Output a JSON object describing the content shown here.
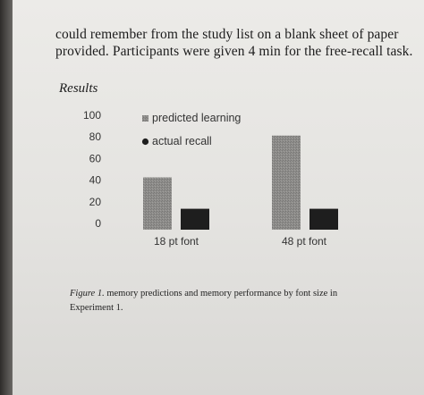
{
  "text": {
    "line1": "could remember from the study list on a blank sheet of paper",
    "line2": "provided. Participants were given 4 min for the free-recall task.",
    "results_heading": "Results",
    "caption_figure": "Figure 1.",
    "caption_text": "memory predictions and memory performance by font size in Experiment 1."
  },
  "chart_data": {
    "type": "bar",
    "categories": [
      "18 pt font",
      "48 pt font"
    ],
    "series": [
      {
        "name": "predicted learning",
        "values": [
          50,
          90
        ],
        "color": "#8a8987"
      },
      {
        "name": "actual recall",
        "values": [
          20,
          20
        ],
        "color": "#1e1e1e"
      }
    ],
    "yticks": [
      100,
      80,
      60,
      40,
      20,
      0
    ],
    "ylim": [
      0,
      100
    ],
    "grid": false,
    "legend_position": "top-center"
  }
}
